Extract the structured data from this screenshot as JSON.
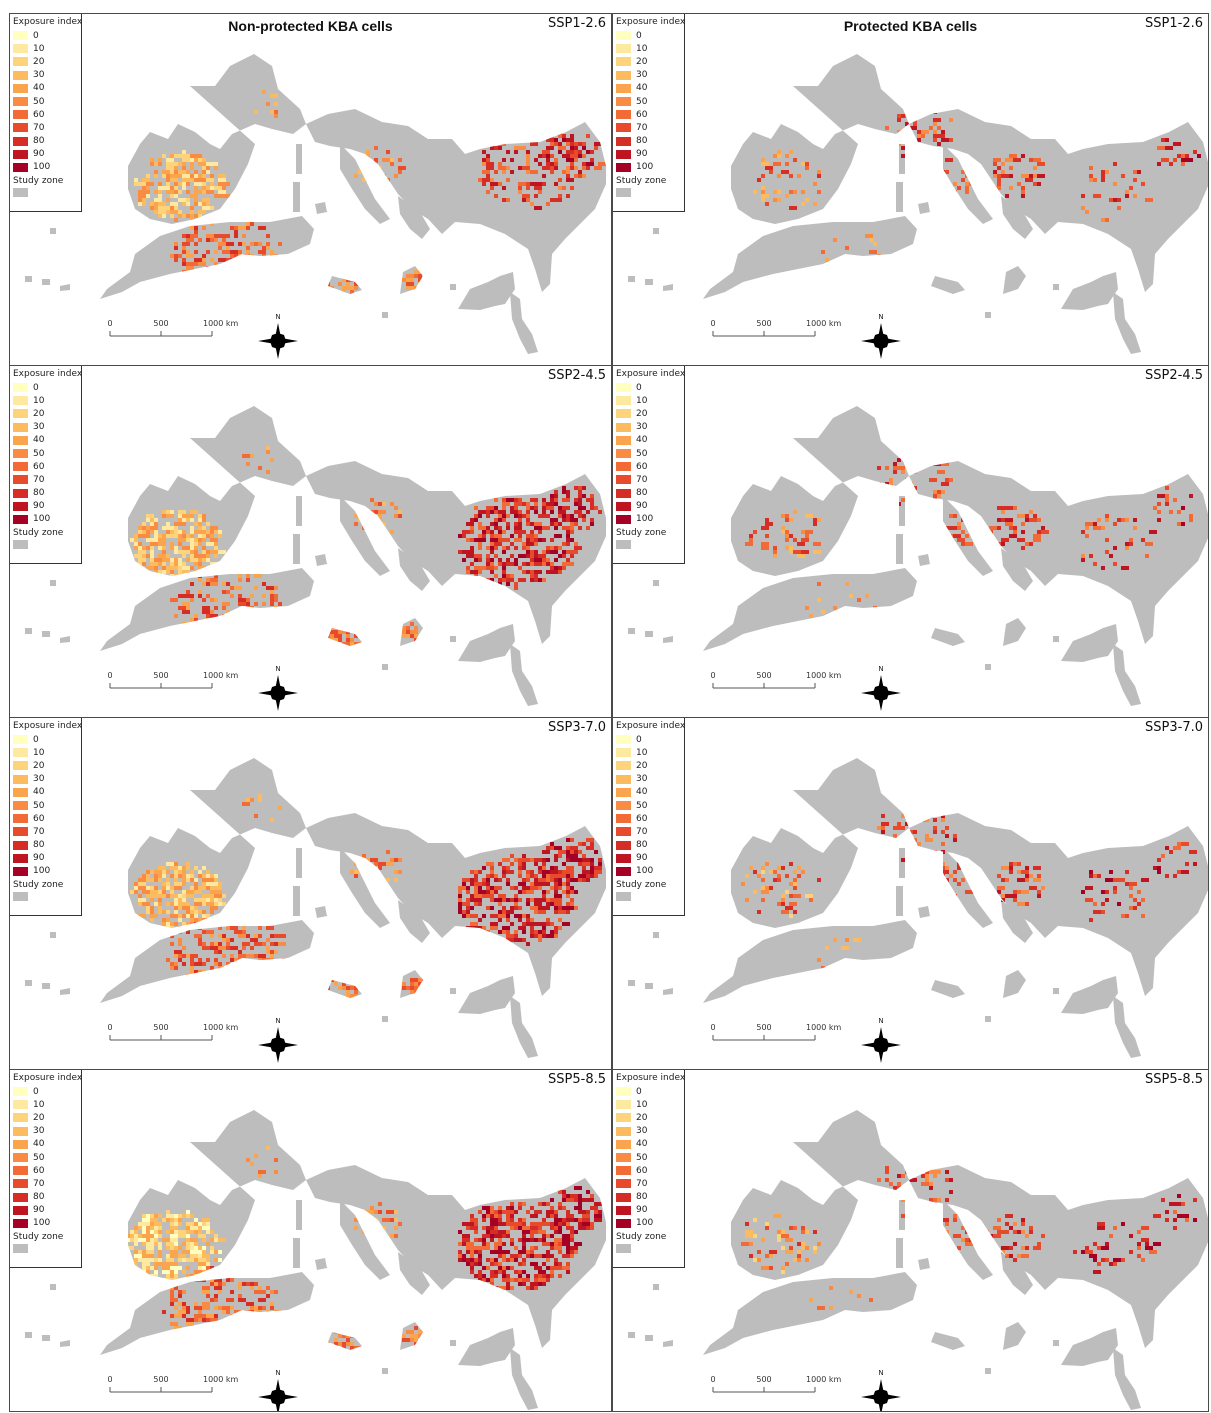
{
  "columns": [
    {
      "title": "Non-protected KBA cells",
      "key": "nonprotected"
    },
    {
      "title": "Protected KBA cells",
      "key": "protected"
    }
  ],
  "scenarios": [
    "SSP1-2.6",
    "SSP2-4.5",
    "SSP3-7.0",
    "SSP5-8.5"
  ],
  "legend": {
    "title": "Exposure index",
    "classes": [
      {
        "label": "0",
        "color": "#ffffc0"
      },
      {
        "label": "10",
        "color": "#fee9a0"
      },
      {
        "label": "20",
        "color": "#fdd37c"
      },
      {
        "label": "30",
        "color": "#fcbb5e"
      },
      {
        "label": "40",
        "color": "#fba44e"
      },
      {
        "label": "50",
        "color": "#f98c42"
      },
      {
        "label": "60",
        "color": "#f26a36"
      },
      {
        "label": "70",
        "color": "#e74b2c"
      },
      {
        "label": "80",
        "color": "#d62e26"
      },
      {
        "label": "90",
        "color": "#bd1622"
      },
      {
        "label": "100",
        "color": "#a50026"
      }
    ],
    "study_zone_label": "Study zone",
    "study_zone_color": "#bdbdbd"
  },
  "scale_bar": {
    "ticks": [
      "0",
      "500",
      "1000 km"
    ]
  },
  "north_arrow": {
    "label": "N"
  },
  "colors": {
    "land": "#bdbdbd",
    "border": "#4a4a4a"
  }
}
